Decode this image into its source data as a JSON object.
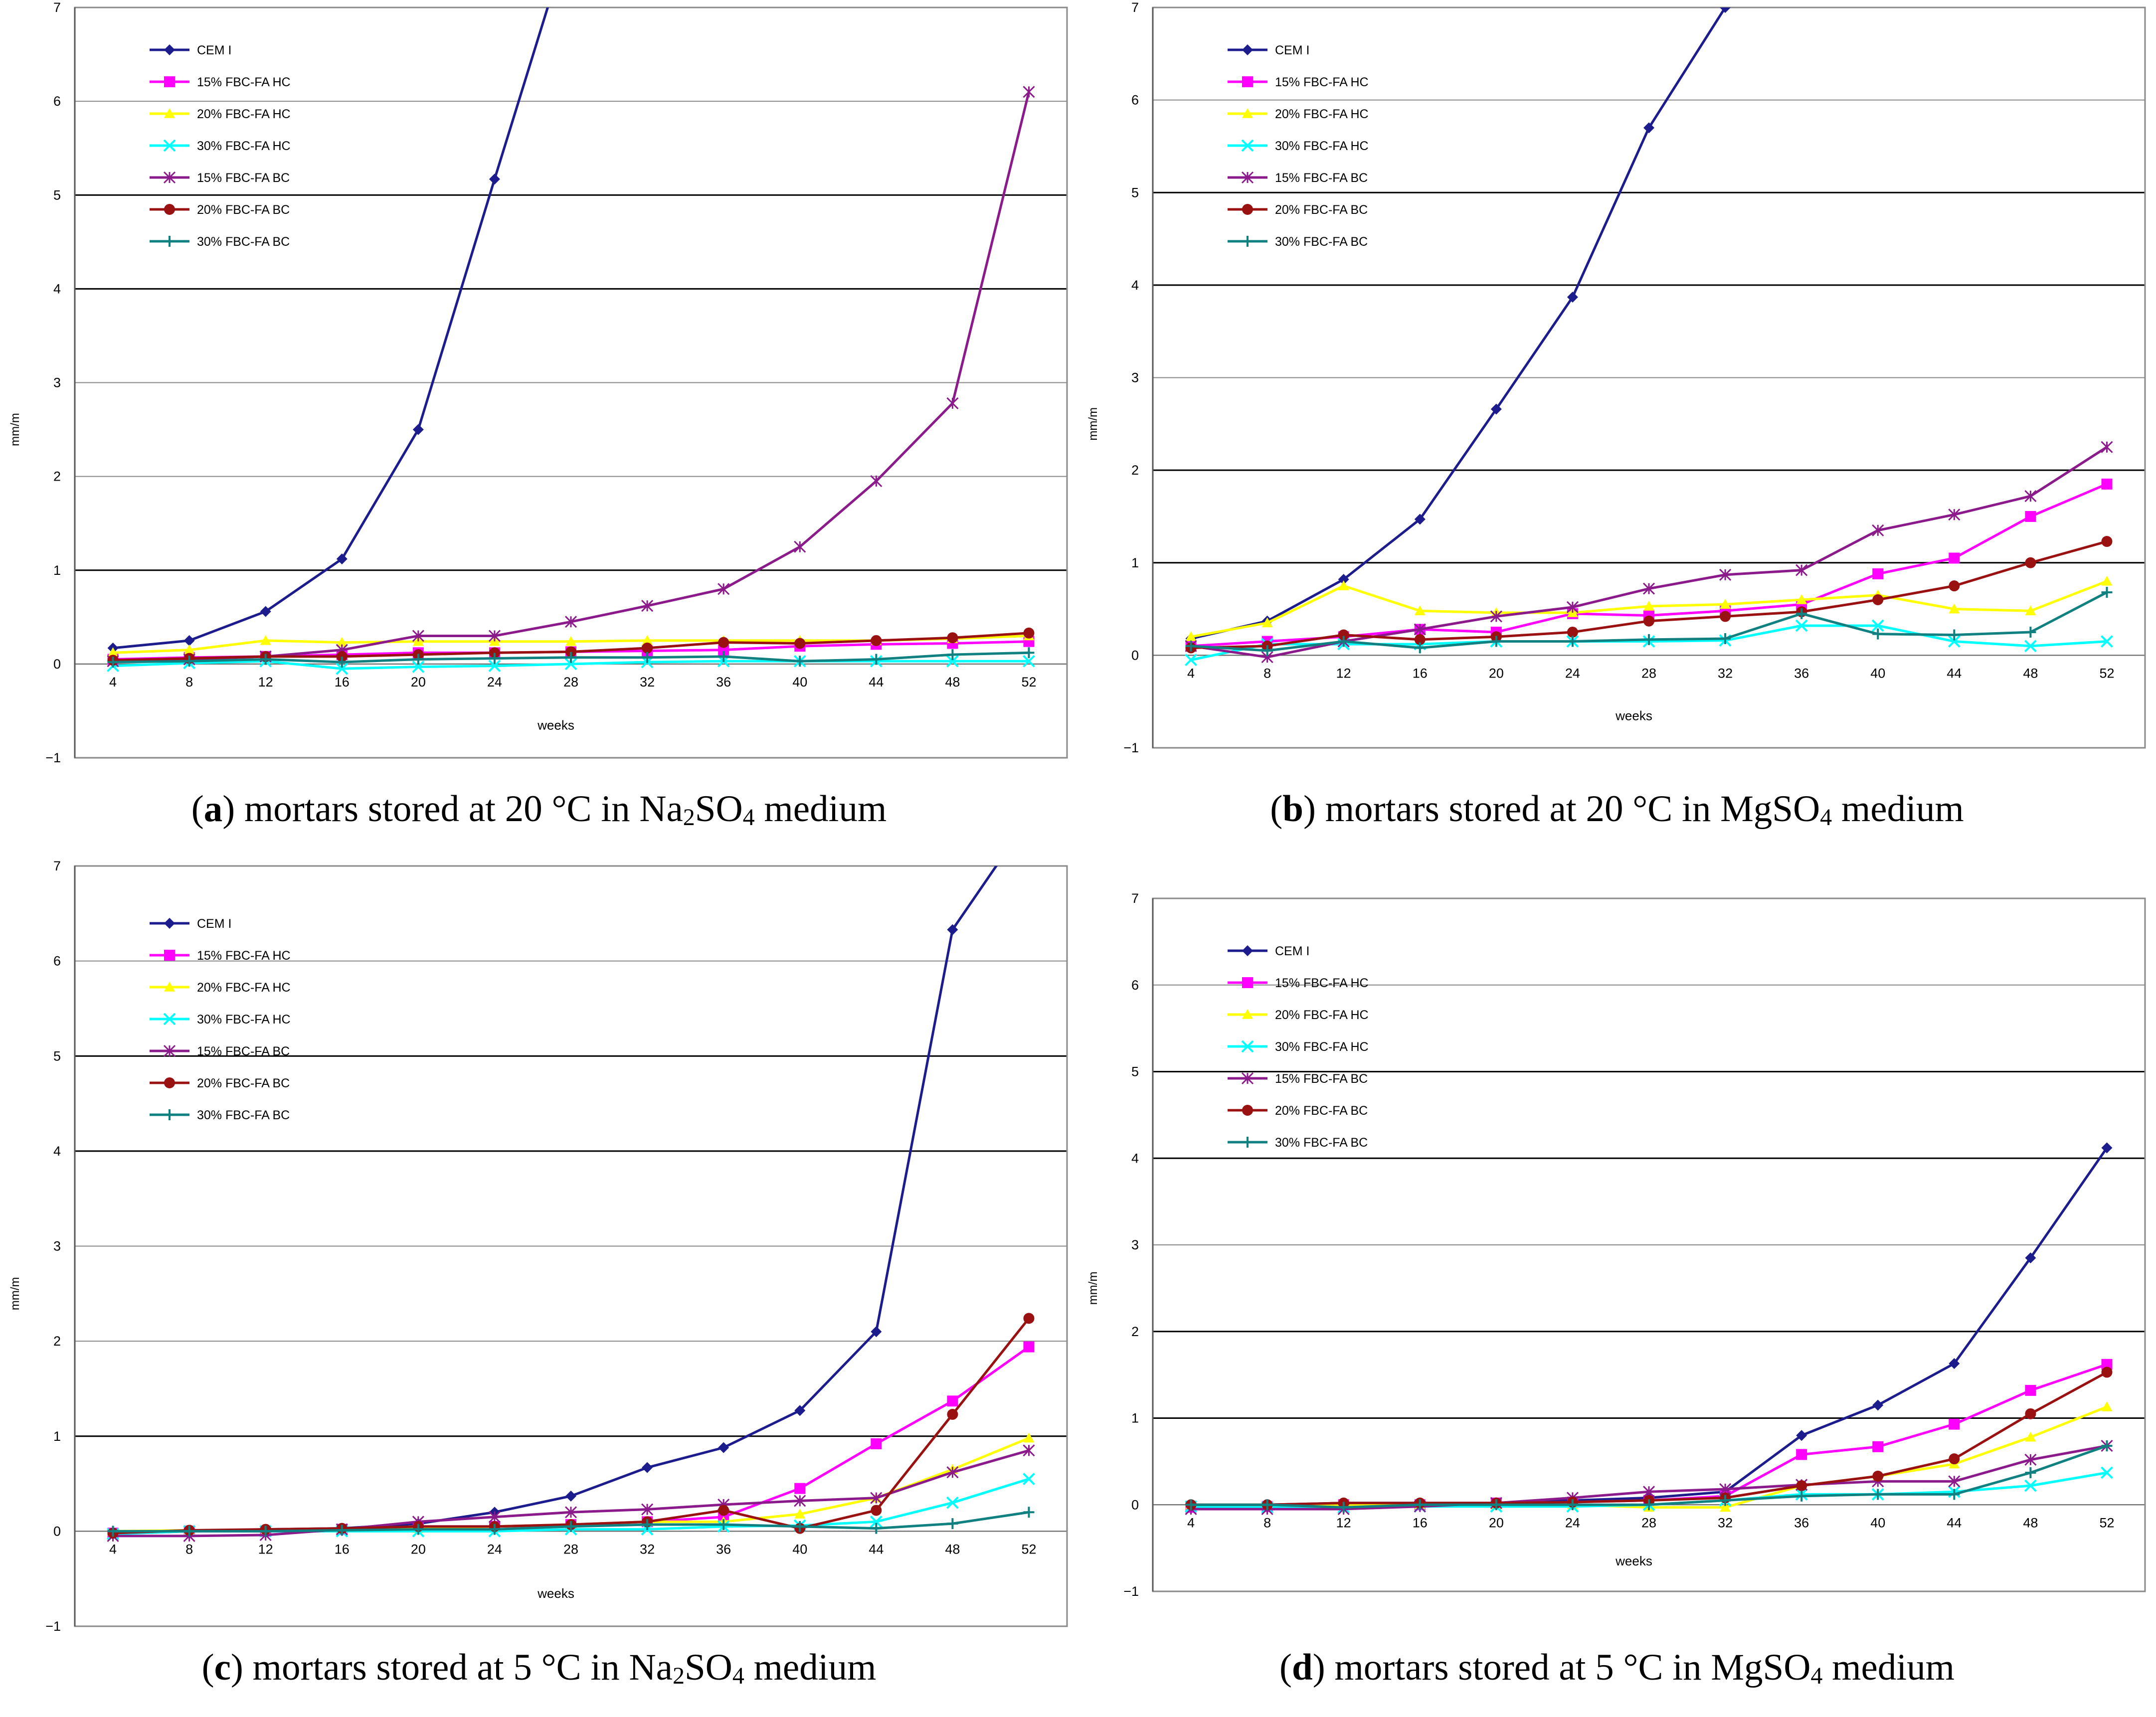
{
  "series_styles": [
    {
      "name": "CEM I",
      "color": "#1c1c8c",
      "marker": "diamond"
    },
    {
      "name": "15% FBC-FA HC",
      "color": "#ff00ff",
      "marker": "square"
    },
    {
      "name": "20% FBC-FA HC",
      "color": "#ffff00",
      "marker": "triangle"
    },
    {
      "name": "30% FBC-FA HC",
      "color": "#00ffff",
      "marker": "x"
    },
    {
      "name": "15% FBC-FA BC",
      "color": "#8b1a8b",
      "marker": "star"
    },
    {
      "name": "20% FBC-FA BC",
      "color": "#991111",
      "marker": "circle"
    },
    {
      "name": "30% FBC-FA BC",
      "color": "#108080",
      "marker": "plus"
    }
  ],
  "chart_data": [
    {
      "type": "line",
      "label": "a",
      "caption": {
        "prefix": "(",
        "letter": "a",
        "text_before": ") mortars stored at 20 °C in Na",
        "sub1": "2",
        "mid": "SO",
        "sub2": "4",
        "text_after": " medium"
      },
      "xlabel": "weeks",
      "ylabel": "mm/m",
      "ylim": [
        -1,
        7
      ],
      "yticks": [
        "−1",
        "0",
        "1",
        "2",
        "3",
        "4",
        "5",
        "6",
        "7"
      ],
      "x": [
        4,
        8,
        12,
        16,
        20,
        24,
        28,
        32,
        36,
        40,
        44,
        48,
        52
      ],
      "legend": "top-left",
      "series": [
        {
          "name": "CEM I",
          "values": [
            0.17,
            0.25,
            0.56,
            1.12,
            2.5,
            5.17,
            7.8,
            null,
            null,
            null,
            null,
            null,
            null
          ]
        },
        {
          "name": "15% FBC-FA HC",
          "values": [
            0.05,
            0.07,
            0.08,
            0.1,
            0.12,
            0.12,
            0.13,
            0.14,
            0.15,
            0.19,
            0.21,
            0.22,
            0.24
          ]
        },
        {
          "name": "20% FBC-FA HC",
          "values": [
            0.12,
            0.15,
            0.25,
            0.23,
            0.24,
            0.24,
            0.24,
            0.25,
            0.25,
            0.25,
            0.25,
            0.27,
            0.3
          ]
        },
        {
          "name": "30% FBC-FA HC",
          "values": [
            -0.02,
            0.01,
            0.03,
            -0.05,
            -0.03,
            -0.02,
            0.0,
            0.02,
            0.03,
            0.03,
            0.03,
            0.03,
            0.03
          ]
        },
        {
          "name": "15% FBC-FA BC",
          "values": [
            0.03,
            0.05,
            0.08,
            0.15,
            0.3,
            0.3,
            0.45,
            0.62,
            0.8,
            1.25,
            1.95,
            2.78,
            6.1
          ]
        },
        {
          "name": "20% FBC-FA BC",
          "values": [
            0.04,
            0.06,
            0.08,
            0.08,
            0.1,
            0.12,
            0.13,
            0.17,
            0.23,
            0.22,
            0.25,
            0.28,
            0.33
          ]
        },
        {
          "name": "30% FBC-FA BC",
          "values": [
            0.02,
            0.03,
            0.05,
            0.02,
            0.05,
            0.06,
            0.07,
            0.07,
            0.08,
            0.03,
            0.05,
            0.1,
            0.12
          ]
        }
      ]
    },
    {
      "type": "line",
      "label": "b",
      "caption": {
        "prefix": "(",
        "letter": "b",
        "text_before": ") mortars stored at 20 °C in Mg",
        "sub1": "",
        "mid": "SO",
        "sub2": "4",
        "text_after": " medium"
      },
      "xlabel": "weeks",
      "ylabel": "mm/m",
      "ylim": [
        -1,
        7
      ],
      "yticks": [
        "−1",
        "0",
        "1",
        "2",
        "3",
        "4",
        "5",
        "6",
        "7"
      ],
      "x": [
        4,
        8,
        12,
        16,
        20,
        24,
        28,
        32,
        36,
        40,
        44,
        48,
        52
      ],
      "legend": "top-left",
      "series": [
        {
          "name": "CEM I",
          "values": [
            0.18,
            0.37,
            0.82,
            1.47,
            2.66,
            3.87,
            5.7,
            7.0,
            null,
            null,
            null,
            null,
            null
          ]
        },
        {
          "name": "15% FBC-FA HC",
          "values": [
            0.1,
            0.15,
            0.2,
            0.28,
            0.25,
            0.45,
            0.43,
            0.48,
            0.55,
            0.88,
            1.05,
            1.5,
            1.85
          ]
        },
        {
          "name": "20% FBC-FA HC",
          "values": [
            0.2,
            0.35,
            0.75,
            0.48,
            0.46,
            0.46,
            0.53,
            0.55,
            0.6,
            0.65,
            0.5,
            0.48,
            0.8
          ]
        },
        {
          "name": "30% FBC-FA HC",
          "values": [
            -0.05,
            0.12,
            0.12,
            0.12,
            0.15,
            0.15,
            0.15,
            0.16,
            0.32,
            0.32,
            0.15,
            0.1,
            0.15
          ]
        },
        {
          "name": "15% FBC-FA BC",
          "values": [
            0.1,
            -0.02,
            0.15,
            0.28,
            0.42,
            0.52,
            0.72,
            0.87,
            0.92,
            1.35,
            1.52,
            1.72,
            2.25
          ]
        },
        {
          "name": "20% FBC-FA BC",
          "values": [
            0.08,
            0.1,
            0.22,
            0.17,
            0.2,
            0.25,
            0.37,
            0.42,
            0.47,
            0.6,
            0.75,
            1.0,
            1.23
          ]
        },
        {
          "name": "30% FBC-FA BC",
          "values": [
            0.1,
            0.05,
            0.15,
            0.08,
            0.15,
            0.15,
            0.17,
            0.18,
            0.45,
            0.23,
            0.22,
            0.25,
            0.68
          ]
        }
      ]
    },
    {
      "type": "line",
      "label": "c",
      "caption": {
        "prefix": "(",
        "letter": "c",
        "text_before": ") mortars stored at 5 °C in Na",
        "sub1": "2",
        "mid": "SO",
        "sub2": "4",
        "text_after": " medium"
      },
      "xlabel": "weeks",
      "ylabel": "mm/m",
      "ylim": [
        -1,
        7
      ],
      "yticks": [
        "−1",
        "0",
        "1",
        "2",
        "3",
        "4",
        "5",
        "6",
        "7"
      ],
      "x": [
        4,
        8,
        12,
        16,
        20,
        24,
        28,
        32,
        36,
        40,
        44,
        48,
        52
      ],
      "legend": "top-left",
      "series": [
        {
          "name": "CEM I",
          "values": [
            -0.02,
            0.0,
            0.02,
            0.03,
            0.08,
            0.2,
            0.37,
            0.67,
            0.88,
            1.27,
            2.1,
            6.33,
            7.5
          ]
        },
        {
          "name": "15% FBC-FA HC",
          "values": [
            -0.02,
            0.0,
            0.0,
            0.02,
            0.05,
            0.05,
            0.07,
            0.1,
            0.15,
            0.45,
            0.92,
            1.37,
            1.94
          ]
        },
        {
          "name": "20% FBC-FA HC",
          "values": [
            0.0,
            0.01,
            0.01,
            0.02,
            0.03,
            0.05,
            0.07,
            0.1,
            0.1,
            0.18,
            0.35,
            0.65,
            0.98
          ]
        },
        {
          "name": "30% FBC-FA HC",
          "values": [
            -0.03,
            0.0,
            0.0,
            0.0,
            0.0,
            0.0,
            0.02,
            0.02,
            0.05,
            0.06,
            0.1,
            0.3,
            0.55
          ]
        },
        {
          "name": "15% FBC-FA BC",
          "values": [
            -0.05,
            -0.05,
            -0.04,
            0.02,
            0.1,
            0.15,
            0.2,
            0.23,
            0.28,
            0.32,
            0.35,
            0.62,
            0.85
          ]
        },
        {
          "name": "20% FBC-FA BC",
          "values": [
            -0.02,
            0.01,
            0.02,
            0.03,
            0.05,
            0.05,
            0.07,
            0.1,
            0.22,
            0.03,
            0.22,
            1.23,
            2.24
          ]
        },
        {
          "name": "30% FBC-FA BC",
          "values": [
            0.0,
            0.0,
            0.0,
            0.01,
            0.02,
            0.02,
            0.05,
            0.07,
            0.07,
            0.05,
            0.03,
            0.08,
            0.2
          ]
        }
      ]
    },
    {
      "type": "line",
      "label": "d",
      "caption": {
        "prefix": "(",
        "letter": "d",
        "text_before": ") mortars stored at 5 °C in Mg",
        "sub1": "",
        "mid": "SO",
        "sub2": "4",
        "text_after": " medium"
      },
      "xlabel": "weeks",
      "ylabel": "mm/m",
      "ylim": [
        -1,
        7
      ],
      "yticks": [
        "−1",
        "0",
        "1",
        "2",
        "3",
        "4",
        "5",
        "6",
        "7"
      ],
      "x": [
        4,
        8,
        12,
        16,
        20,
        24,
        28,
        32,
        36,
        40,
        44,
        48,
        52
      ],
      "legend": "top-left",
      "series": [
        {
          "name": "CEM I",
          "values": [
            -0.02,
            0.0,
            0.02,
            0.02,
            0.02,
            0.05,
            0.08,
            0.15,
            0.8,
            1.15,
            1.63,
            2.85,
            4.12
          ]
        },
        {
          "name": "15% FBC-FA HC",
          "values": [
            -0.03,
            -0.02,
            0.0,
            0.0,
            0.02,
            0.03,
            0.05,
            0.1,
            0.58,
            0.67,
            0.93,
            1.32,
            1.62
          ]
        },
        {
          "name": "20% FBC-FA HC",
          "values": [
            0.0,
            0.0,
            0.0,
            0.0,
            0.0,
            0.0,
            -0.03,
            -0.03,
            0.22,
            0.33,
            0.47,
            0.78,
            1.13
          ]
        },
        {
          "name": "30% FBC-FA HC",
          "values": [
            -0.02,
            -0.03,
            -0.03,
            -0.02,
            -0.02,
            -0.02,
            0.0,
            0.05,
            0.12,
            0.12,
            0.15,
            0.22,
            0.37
          ]
        },
        {
          "name": "15% FBC-FA BC",
          "values": [
            -0.05,
            -0.05,
            -0.05,
            -0.02,
            0.02,
            0.08,
            0.15,
            0.18,
            0.23,
            0.27,
            0.27,
            0.52,
            0.68
          ]
        },
        {
          "name": "20% FBC-FA BC",
          "values": [
            0.0,
            0.0,
            0.02,
            0.02,
            0.02,
            0.03,
            0.05,
            0.08,
            0.22,
            0.33,
            0.53,
            1.05,
            1.53
          ]
        },
        {
          "name": "30% FBC-FA BC",
          "values": [
            0.0,
            0.0,
            -0.03,
            0.0,
            0.0,
            0.0,
            0.0,
            0.05,
            0.1,
            0.12,
            0.12,
            0.37,
            0.68
          ]
        }
      ]
    }
  ]
}
